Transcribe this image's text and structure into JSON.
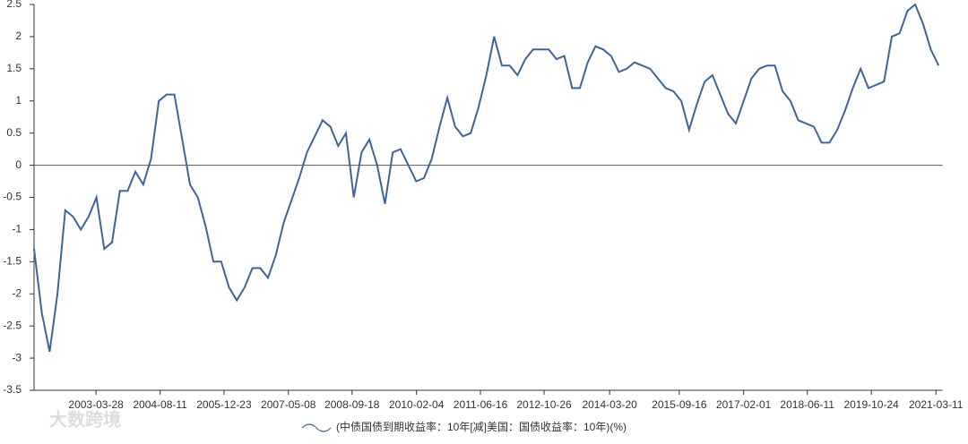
{
  "chart_data": {
    "type": "line",
    "legend_label": "(中债国债到期收益率：10年[减]美国：国债收益率：10年)(%)",
    "watermark": "大数跨境",
    "color": "#3f6596",
    "x": [
      "2001-12",
      "2002-02",
      "2002-04",
      "2002-06",
      "2002-08",
      "2002-10",
      "2002-12",
      "2003-02",
      "2003-04",
      "2003-06",
      "2003-08",
      "2003-10",
      "2003-12",
      "2004-02",
      "2004-04",
      "2004-06",
      "2004-08",
      "2004-10",
      "2004-12",
      "2005-02",
      "2005-04",
      "2005-06",
      "2005-08",
      "2005-10",
      "2005-12",
      "2006-02",
      "2006-04",
      "2006-06",
      "2006-08",
      "2006-10",
      "2006-12",
      "2007-02",
      "2007-04",
      "2007-06",
      "2007-08",
      "2007-10",
      "2007-12",
      "2008-02",
      "2008-04",
      "2008-06",
      "2008-08",
      "2008-10",
      "2008-12",
      "2009-02",
      "2009-04",
      "2009-06",
      "2009-08",
      "2009-10",
      "2009-12",
      "2010-02",
      "2010-04",
      "2010-06",
      "2010-08",
      "2010-10",
      "2010-12",
      "2011-02",
      "2011-04",
      "2011-06",
      "2011-08",
      "2011-10",
      "2011-12",
      "2012-02",
      "2012-04",
      "2012-06",
      "2012-08",
      "2012-10",
      "2012-12",
      "2013-02",
      "2013-04",
      "2013-06",
      "2013-08",
      "2013-10",
      "2013-12",
      "2014-02",
      "2014-04",
      "2014-06",
      "2014-08",
      "2014-10",
      "2014-12",
      "2015-02",
      "2015-04",
      "2015-06",
      "2015-08",
      "2015-10",
      "2015-12",
      "2016-02",
      "2016-04",
      "2016-06",
      "2016-08",
      "2016-10",
      "2016-12",
      "2017-02",
      "2017-04",
      "2017-06",
      "2017-08",
      "2017-10",
      "2017-12",
      "2018-02",
      "2018-04",
      "2018-06",
      "2018-08",
      "2018-10",
      "2018-12",
      "2019-02",
      "2019-04",
      "2019-06",
      "2019-08",
      "2019-10",
      "2019-12",
      "2020-02",
      "2020-04",
      "2020-06",
      "2020-08",
      "2020-10",
      "2020-12",
      "2021-02",
      "2021-04"
    ],
    "values": [
      -1.3,
      -2.3,
      -2.9,
      -2.0,
      -0.7,
      -0.8,
      -1.0,
      -0.8,
      -0.5,
      -1.3,
      -1.2,
      -0.4,
      -0.4,
      -0.1,
      -0.3,
      0.1,
      1.0,
      1.1,
      1.1,
      0.4,
      -0.3,
      -0.5,
      -0.95,
      -1.5,
      -1.5,
      -1.9,
      -2.1,
      -1.9,
      -1.6,
      -1.6,
      -1.75,
      -1.4,
      -0.9,
      -0.55,
      -0.2,
      0.2,
      0.45,
      0.7,
      0.6,
      0.3,
      0.5,
      -0.5,
      0.2,
      0.4,
      0.0,
      -0.6,
      0.2,
      0.25,
      0.0,
      -0.25,
      -0.2,
      0.1,
      0.6,
      1.05,
      0.6,
      0.45,
      0.5,
      0.9,
      1.4,
      2.0,
      1.55,
      1.55,
      1.4,
      1.65,
      1.8,
      1.8,
      1.8,
      1.65,
      1.7,
      1.2,
      1.2,
      1.6,
      1.85,
      1.8,
      1.7,
      1.45,
      1.5,
      1.6,
      1.55,
      1.5,
      1.35,
      1.2,
      1.15,
      1.0,
      0.55,
      0.95,
      1.3,
      1.4,
      1.1,
      0.8,
      0.65,
      1.0,
      1.35,
      1.5,
      1.55,
      1.55,
      1.15,
      1.0,
      0.7,
      0.65,
      0.6,
      0.35,
      0.35,
      0.55,
      0.85,
      1.2,
      1.5,
      1.2,
      1.25,
      1.3,
      2.0,
      2.05,
      2.4,
      2.5,
      2.2,
      1.8,
      1.55
    ],
    "xlim": [
      "2001-12",
      "2021-05"
    ],
    "xticks": [
      "2003-03-28",
      "2004-08-11",
      "2005-12-23",
      "2007-05-08",
      "2008-09-18",
      "2010-02-04",
      "2011-06-16",
      "2012-10-26",
      "2014-03-20",
      "2015-09-16",
      "2017-02-01",
      "2018-06-11",
      "2019-10-24",
      "2021-03-11"
    ],
    "ylim": [
      -3.5,
      2.5
    ],
    "yticks": [
      2.5,
      2,
      1.5,
      1,
      0.5,
      0,
      -0.5,
      -1,
      -1.5,
      -2,
      -2.5,
      -3,
      -3.5
    ],
    "zero_line": 0
  }
}
